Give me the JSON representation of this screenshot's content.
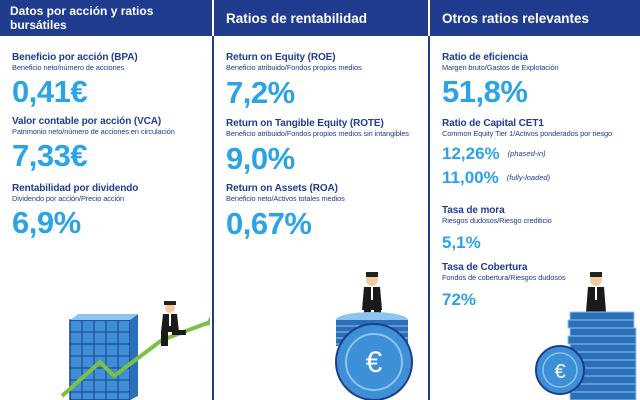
{
  "columns": [
    {
      "title": "Datos por acción y ratios bursátiles",
      "items": [
        {
          "label": "Beneficio por acción (BPA)",
          "desc": "Beneficio neto/número de acciones",
          "value": "0,41€"
        },
        {
          "label": "Valor contable por acción (VCA)",
          "desc": "Patrimonio neto/número de acciones en circulación",
          "value": "7,33€"
        },
        {
          "label": "Rentabilidad por dividendo",
          "desc": "Dividendo por acción/Precio acción",
          "value": "6,9%"
        }
      ]
    },
    {
      "title": "Ratios de rentabilidad",
      "items": [
        {
          "label": "Return on Equity (ROE)",
          "desc": "Beneficio atribuido/Fondos propios medios",
          "value": "7,2%"
        },
        {
          "label": "Return on Tangible Equity (ROTE)",
          "desc": "Beneficio atribuido/Fondos propios medios sin intangibles",
          "value": "9,0%"
        },
        {
          "label": "Return on Assets (ROA)",
          "desc": "Beneficio neto/Activos totales medios",
          "value": "0,67%"
        }
      ]
    },
    {
      "title": "Otros ratios relevantes",
      "efficiency": {
        "label": "Ratio de eficiencia",
        "desc": "Margen bruto/Gastos de Explotación",
        "value": "51,8%"
      },
      "cet1": {
        "label": "Ratio de Capital CET1",
        "desc": "Common Equity Tier 1/Activos ponderados por riesgo",
        "phased_value": "12,26%",
        "phased_note": "(phased-in)",
        "fully_value": "11,00%",
        "fully_note": "(fully-loaded)"
      },
      "npl": {
        "label": "Tasa de mora",
        "desc": "Riesgos dudosos/Riesgo crediticio",
        "value": "5,1%"
      },
      "coverage": {
        "label": "Tasa de Cobertura",
        "desc": "Fondos de cobertura/Riesgos dudosos",
        "value": "72%"
      }
    }
  ],
  "colors": {
    "navy": "#1f3c8f",
    "accent": "#2aa4e6",
    "green": "#7bc142"
  },
  "icons": [
    "growth-chart-illustration",
    "coin-stack-illustration",
    "coin-stacks-illustration",
    "euro-icon"
  ]
}
